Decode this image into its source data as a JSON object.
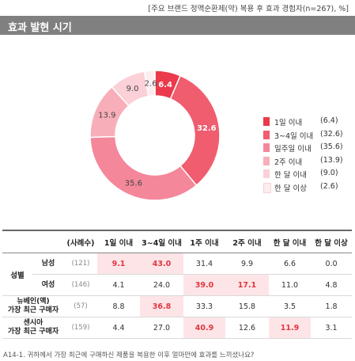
{
  "header_note": "[주요 브랜드 정맥순환제(약) 복용 후 효과 경험자(n=267), %]",
  "section_title": "효과 발현 시기",
  "chart_data": {
    "type": "pie",
    "categories": [
      "1일 이내",
      "3~4일 이내",
      "일주일 이내",
      "2주 이내",
      "한 달 이내",
      "한 달 이상"
    ],
    "values": [
      6.4,
      32.6,
      35.6,
      13.9,
      9.0,
      2.6
    ],
    "value_labels": [
      "6.4",
      "32.6",
      "35.6",
      "13.9",
      "9.0",
      "2.6"
    ],
    "legend_values": [
      "(6.4)",
      "(32.6)",
      "(35.6)",
      "(13.9)",
      "(9.0)",
      "(2.6)"
    ],
    "colors": [
      "#ea3a4c",
      "#ef5d6e",
      "#f4879a",
      "#f8aeb9",
      "#fbd0d7",
      "#fdedf0"
    ],
    "label_colors": [
      "#ffffff",
      "#ffffff",
      "#444444",
      "#444444",
      "#444444",
      "#444444"
    ],
    "legend_position": "right",
    "title": ""
  },
  "table": {
    "headers": [
      "(사례수)",
      "1일 이내",
      "3~4일 이내",
      "1주 이내",
      "2주 이내",
      "한 달 이내",
      "한 달 이상"
    ],
    "group_label": "성별",
    "rows": [
      {
        "label": "남성",
        "n": "(121)",
        "values": [
          "9.1",
          "43.0",
          "31.4",
          "9.9",
          "6.6",
          "0.0"
        ]
      },
      {
        "label": "여성",
        "n": "(146)",
        "values": [
          "4.1",
          "24.0",
          "39.0",
          "17.1",
          "11.0",
          "4.8"
        ]
      },
      {
        "label_line1": "뉴베인(액)",
        "label_line2": "가장 최근 구매자",
        "n": "(57)",
        "values": [
          "8.8",
          "36.8",
          "33.3",
          "15.8",
          "3.5",
          "1.8"
        ]
      },
      {
        "label_line1": "센시아",
        "label_line2": "가장 최근 구매자",
        "n": "(159)",
        "values": [
          "4.4",
          "27.0",
          "40.9",
          "12.6",
          "11.9",
          "3.1"
        ]
      }
    ]
  },
  "footnote": "A14-1. 귀하께서 가장 최근에 구매하신 제품을 복용한 이후 얼마만에 효과를 느끼셨나요?"
}
